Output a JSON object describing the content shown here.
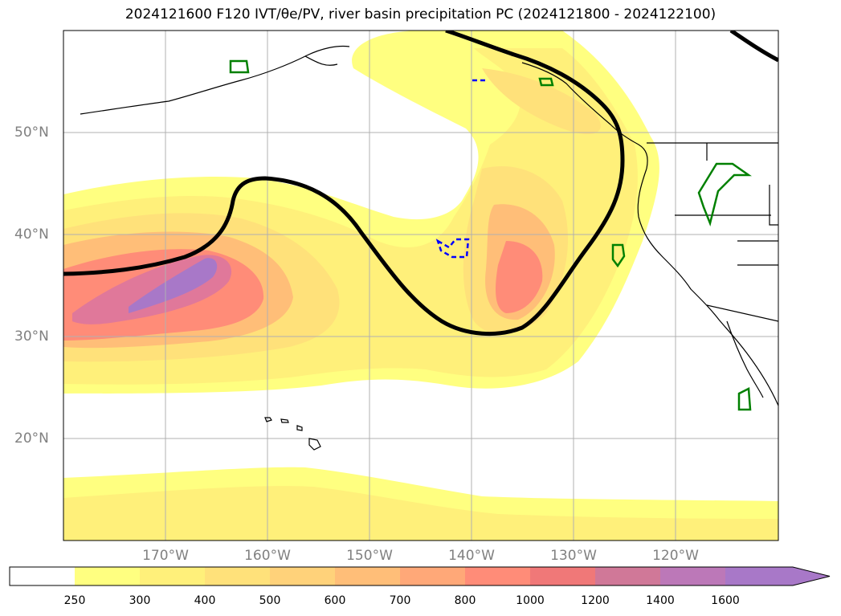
{
  "title": "2024121600 F120 IVT/θe/PV, river basin precipitation PC (2024121800 - 2024122100)",
  "map": {
    "lat_labels": [
      "50°N",
      "40°N",
      "30°N",
      "20°N"
    ],
    "lon_labels": [
      "170°W",
      "160°W",
      "150°W",
      "140°W",
      "130°W",
      "120°W"
    ],
    "gridlines": true
  },
  "colorbar": {
    "ticks": [
      "250",
      "300",
      "400",
      "500",
      "600",
      "700",
      "800",
      "1000",
      "1200",
      "1400",
      "1600"
    ],
    "colors": [
      "#ffffff",
      "#ffff80",
      "#fff07a",
      "#ffe17a",
      "#ffd27a",
      "#ffbe78",
      "#ffa878",
      "#ff8c78",
      "#f07878",
      "#d07898",
      "#bc78b8",
      "#a878c8"
    ],
    "extend": "max"
  },
  "colors": {
    "contour_line": "#000000",
    "pv_positive": "#008000",
    "pv_negative": "#0000ff",
    "grid": "#b0b0b0"
  }
}
